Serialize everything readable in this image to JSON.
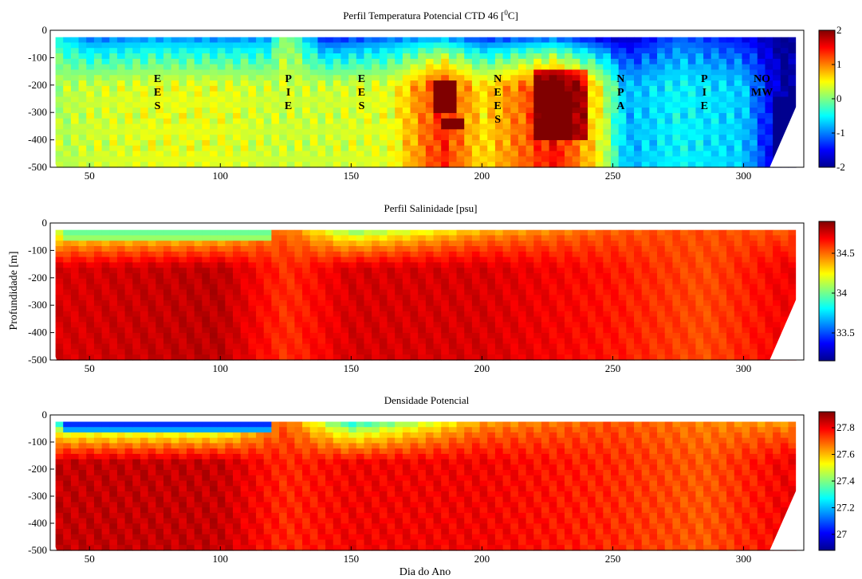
{
  "chart_data": [
    {
      "type": "heatmap",
      "title_main": "Perfil Temperatura Potencial CTD 46",
      "title_unit": "[",
      "title_unit_sup": "0",
      "title_unit_end": "C]",
      "xlabel": "",
      "ylabel": "",
      "xlim": [
        35,
        323
      ],
      "ylim": [
        -500,
        0
      ],
      "x_ticks": [
        50,
        100,
        150,
        200,
        250,
        300
      ],
      "y_ticks": [
        0,
        -100,
        -200,
        -300,
        -400,
        -500
      ],
      "colorbar": {
        "range": [
          -2,
          2
        ],
        "ticks": [
          2,
          1,
          0,
          -1,
          -2
        ]
      },
      "water_masses": [
        {
          "day": 76,
          "letters": [
            "E",
            "E",
            "S"
          ]
        },
        {
          "day": 126,
          "letters": [
            "P",
            "I",
            "E"
          ]
        },
        {
          "day": 154,
          "letters": [
            "E",
            "E",
            "S"
          ]
        },
        {
          "day": 206,
          "letters": [
            "N",
            "E",
            "E",
            "S"
          ]
        },
        {
          "day": 253,
          "letters": [
            "N",
            "P",
            "A"
          ]
        },
        {
          "day": 285,
          "letters": [
            "P",
            "I",
            "E"
          ]
        },
        {
          "day": 307,
          "letters": [
            "NO",
            "MW"
          ]
        }
      ],
      "profile": [
        {
          "day": 40,
          "temp_top": -0.6,
          "temp_deep": 0.2
        },
        {
          "day": 50,
          "temp_top": -1.2,
          "temp_deep": 0.3
        },
        {
          "day": 75,
          "temp_top": -1.0,
          "temp_deep": 0.4
        },
        {
          "day": 100,
          "temp_top": -1.1,
          "temp_deep": 0.4
        },
        {
          "day": 118,
          "temp_top": -1.0,
          "temp_deep": 0.3
        },
        {
          "day": 125,
          "temp_top": 0.2,
          "temp_deep": 0.3
        },
        {
          "day": 140,
          "temp_top": -1.6,
          "temp_deep": 0.3
        },
        {
          "day": 165,
          "temp_top": -1.2,
          "temp_deep": 0.4
        },
        {
          "day": 185,
          "temp_top": -1.0,
          "temp_deep": 1.4
        },
        {
          "day": 200,
          "temp_top": -1.5,
          "temp_deep": 0.6
        },
        {
          "day": 228,
          "temp_top": -1.3,
          "temp_deep": 1.5
        },
        {
          "day": 245,
          "temp_top": -1.8,
          "temp_deep": 0.5
        },
        {
          "day": 255,
          "temp_top": -1.9,
          "temp_deep": -0.8
        },
        {
          "day": 275,
          "temp_top": -1.2,
          "temp_deep": -0.5
        },
        {
          "day": 300,
          "temp_top": -1.6,
          "temp_deep": -0.7
        },
        {
          "day": 315,
          "temp_top": -2.0,
          "temp_deep": -1.9
        }
      ]
    },
    {
      "type": "heatmap",
      "title_main": "Perfil Salinidade",
      "title_unit": "[psu]",
      "xlabel": "",
      "ylabel": "Profundidade [m]",
      "xlim": [
        35,
        323
      ],
      "ylim": [
        -500,
        0
      ],
      "x_ticks": [
        50,
        100,
        150,
        200,
        250,
        300
      ],
      "y_ticks": [
        0,
        -100,
        -200,
        -300,
        -400,
        -500
      ],
      "colorbar": {
        "range": [
          33.15,
          34.9
        ],
        "ticks": [
          34.5,
          34,
          33.5
        ]
      },
      "profile": [
        {
          "day": 45,
          "surface": 34.0,
          "deep": 34.75
        },
        {
          "day": 100,
          "surface": 34.0,
          "deep": 34.8
        },
        {
          "day": 125,
          "surface": 34.5,
          "deep": 34.6
        },
        {
          "day": 150,
          "surface": 33.9,
          "deep": 34.75
        },
        {
          "day": 200,
          "surface": 34.3,
          "deep": 34.75
        },
        {
          "day": 250,
          "surface": 34.5,
          "deep": 34.65
        },
        {
          "day": 285,
          "surface": 34.55,
          "deep": 34.55
        },
        {
          "day": 315,
          "surface": 34.5,
          "deep": 34.7
        }
      ]
    },
    {
      "type": "heatmap",
      "title_main": "Densidade Potencial",
      "xlabel": "Dia do Ano",
      "ylabel": "",
      "xlim": [
        35,
        323
      ],
      "ylim": [
        -500,
        0
      ],
      "x_ticks": [
        50,
        100,
        150,
        200,
        250,
        300
      ],
      "y_ticks": [
        0,
        -100,
        -200,
        -300,
        -400,
        -500
      ],
      "colorbar": {
        "range": [
          26.88,
          27.92
        ],
        "ticks": [
          27.8,
          27.6,
          27.4,
          27.2,
          27
        ]
      },
      "profile": [
        {
          "day": 45,
          "surface": 27.2,
          "deep": 27.85
        },
        {
          "day": 100,
          "surface": 27.2,
          "deep": 27.85
        },
        {
          "day": 125,
          "surface": 27.7,
          "deep": 27.75
        },
        {
          "day": 150,
          "surface": 27.2,
          "deep": 27.8
        },
        {
          "day": 200,
          "surface": 27.6,
          "deep": 27.8
        },
        {
          "day": 250,
          "surface": 27.7,
          "deep": 27.75
        },
        {
          "day": 285,
          "surface": 27.65,
          "deep": 27.7
        },
        {
          "day": 315,
          "surface": 27.6,
          "deep": 27.8
        }
      ]
    }
  ],
  "colors": {
    "jet": [
      "#00008f",
      "#0000ff",
      "#0080ff",
      "#00ffff",
      "#80ff80",
      "#ffff00",
      "#ff8000",
      "#ff0000",
      "#800000"
    ]
  }
}
